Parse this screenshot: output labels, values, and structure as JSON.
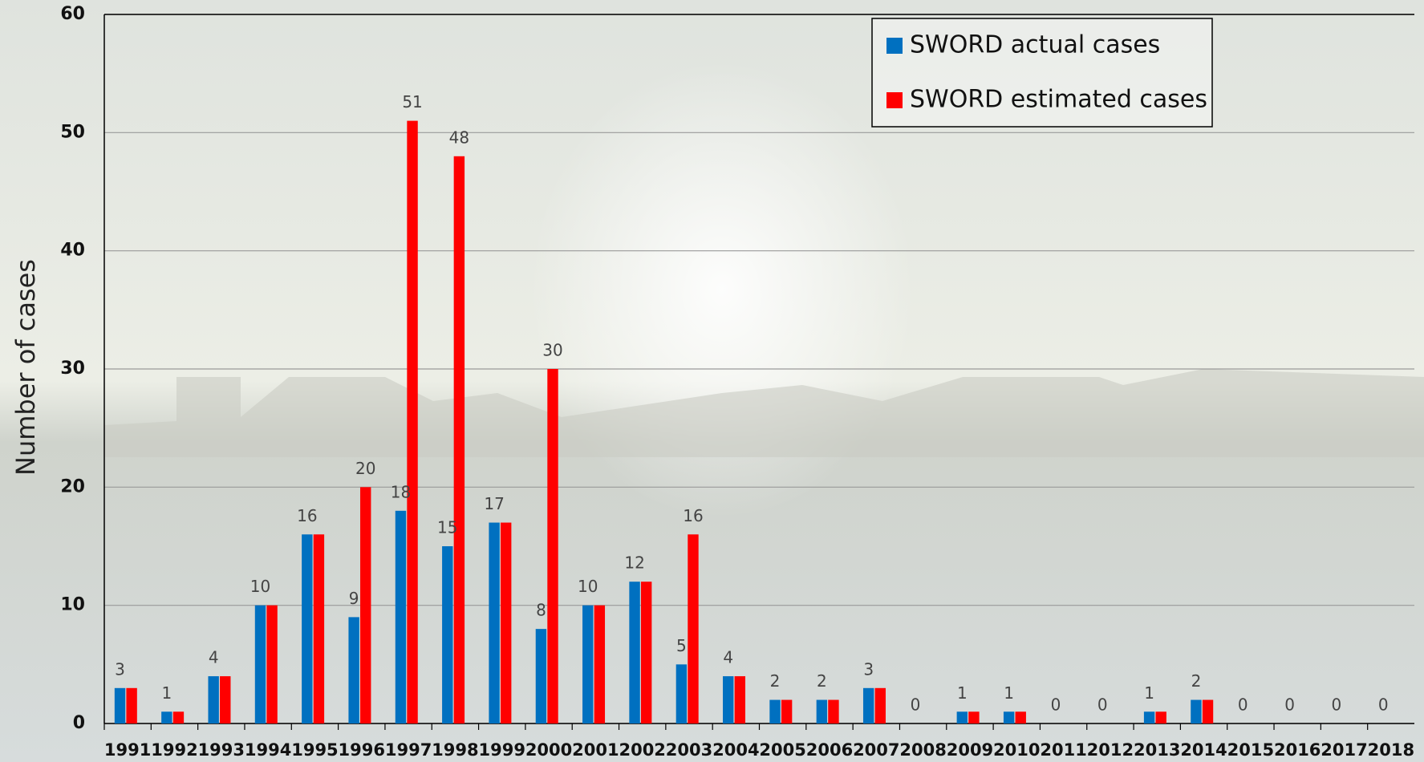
{
  "chart_data": {
    "type": "bar",
    "y_label": "Number of cases",
    "categories": [
      "1991",
      "1992",
      "1993",
      "1994",
      "1995",
      "1996",
      "1997",
      "1998",
      "1999",
      "2000",
      "2001",
      "2002",
      "2003",
      "2004",
      "2005",
      "2006",
      "2007",
      "2008",
      "2009",
      "2010",
      "2011",
      "2012",
      "2013",
      "2014",
      "2015",
      "2016",
      "2017",
      "2018"
    ],
    "series": [
      {
        "name": "SWORD actual cases",
        "color": "#0070c0",
        "values": [
          3,
          1,
          4,
          10,
          16,
          9,
          18,
          15,
          17,
          8,
          10,
          12,
          5,
          4,
          2,
          2,
          3,
          0,
          1,
          1,
          0,
          0,
          1,
          2,
          0,
          0,
          0,
          0
        ]
      },
      {
        "name": "SWORD estimated cases",
        "color": "#ff0000",
        "values": [
          3,
          1,
          4,
          10,
          16,
          20,
          51,
          48,
          17,
          30,
          10,
          12,
          16,
          4,
          2,
          2,
          3,
          0,
          1,
          1,
          0,
          0,
          1,
          2,
          0,
          0,
          0,
          0
        ]
      }
    ],
    "ylim": [
      0,
      60
    ],
    "yticks": [
      0,
      10,
      20,
      30,
      40,
      50,
      60
    ],
    "grid": true,
    "legend": "top-right"
  }
}
